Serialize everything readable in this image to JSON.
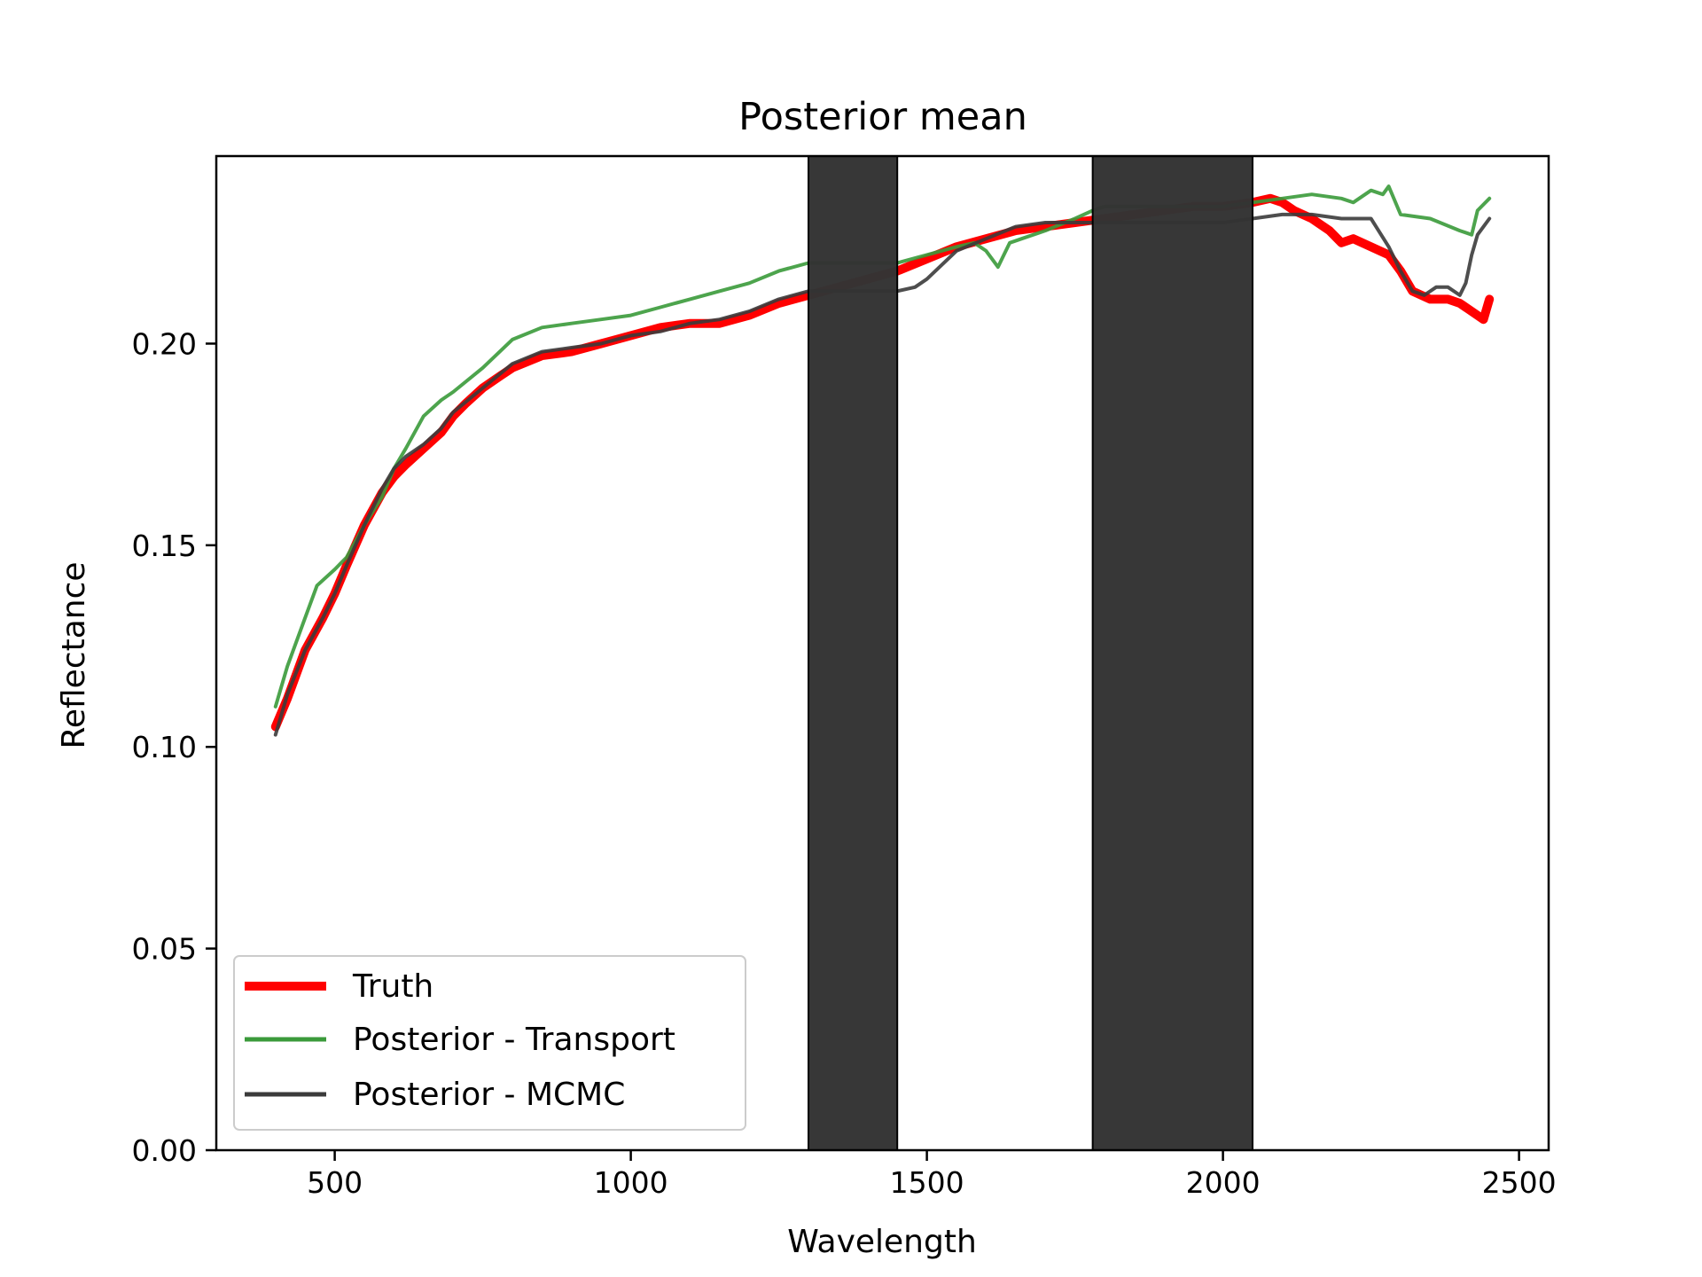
{
  "chart_data": {
    "type": "line",
    "title": "Posterior mean",
    "xlabel": "Wavelength",
    "ylabel": "Reflectance",
    "xlim": [
      300,
      2550
    ],
    "ylim": [
      0,
      0.2465
    ],
    "xticks": [
      500,
      1000,
      1500,
      2000,
      2500
    ],
    "xtick_labels": [
      "500",
      "1000",
      "1500",
      "2000",
      "2500"
    ],
    "yticks": [
      0.0,
      0.05,
      0.1,
      0.15,
      0.2
    ],
    "ytick_labels": [
      "0.00",
      "0.05",
      "0.10",
      "0.15",
      "0.20"
    ],
    "grid": false,
    "legend_position": "lower-left",
    "shaded_regions": [
      {
        "x0": 1300,
        "x1": 1450,
        "color": "#333333"
      },
      {
        "x0": 1780,
        "x1": 2050,
        "color": "#333333"
      }
    ],
    "series": [
      {
        "name": "Truth",
        "color": "#ff0000",
        "x": [
          400,
          420,
          450,
          480,
          500,
          520,
          550,
          580,
          600,
          620,
          650,
          680,
          700,
          720,
          750,
          780,
          800,
          850,
          900,
          950,
          1000,
          1050,
          1100,
          1150,
          1200,
          1250,
          1300,
          1350,
          1400,
          1450,
          1500,
          1550,
          1600,
          1650,
          1700,
          1750,
          1800,
          1850,
          1900,
          1950,
          2000,
          2050,
          2080,
          2100,
          2120,
          2150,
          2180,
          2200,
          2220,
          2250,
          2280,
          2300,
          2320,
          2350,
          2380,
          2400,
          2420,
          2440,
          2450
        ],
        "y": [
          0.105,
          0.112,
          0.124,
          0.132,
          0.138,
          0.145,
          0.155,
          0.163,
          0.167,
          0.17,
          0.174,
          0.178,
          0.182,
          0.185,
          0.189,
          0.192,
          0.194,
          0.197,
          0.198,
          0.2,
          0.202,
          0.204,
          0.205,
          0.205,
          0.207,
          0.21,
          0.212,
          0.214,
          0.216,
          0.218,
          0.221,
          0.224,
          0.226,
          0.228,
          0.229,
          0.23,
          0.231,
          0.232,
          0.233,
          0.234,
          0.234,
          0.235,
          0.236,
          0.235,
          0.233,
          0.231,
          0.228,
          0.225,
          0.226,
          0.224,
          0.222,
          0.218,
          0.213,
          0.211,
          0.211,
          0.21,
          0.208,
          0.206,
          0.211
        ]
      },
      {
        "name": "Posterior - Transport",
        "color": "#3a9a3a",
        "x": [
          400,
          420,
          450,
          470,
          500,
          520,
          550,
          580,
          600,
          620,
          650,
          680,
          700,
          750,
          800,
          850,
          900,
          950,
          1000,
          1050,
          1100,
          1150,
          1200,
          1250,
          1300,
          1350,
          1400,
          1450,
          1500,
          1550,
          1580,
          1600,
          1620,
          1640,
          1660,
          1700,
          1750,
          1780,
          1800,
          1850,
          1900,
          1950,
          2000,
          2050,
          2100,
          2150,
          2200,
          2220,
          2250,
          2270,
          2280,
          2300,
          2350,
          2400,
          2420,
          2430,
          2450
        ],
        "y": [
          0.11,
          0.12,
          0.132,
          0.14,
          0.144,
          0.147,
          0.155,
          0.162,
          0.169,
          0.174,
          0.182,
          0.186,
          0.188,
          0.194,
          0.201,
          0.204,
          0.205,
          0.206,
          0.207,
          0.209,
          0.211,
          0.213,
          0.215,
          0.218,
          0.22,
          0.22,
          0.22,
          0.22,
          0.222,
          0.224,
          0.225,
          0.223,
          0.219,
          0.225,
          0.226,
          0.228,
          0.231,
          0.233,
          0.234,
          0.234,
          0.234,
          0.234,
          0.234,
          0.235,
          0.236,
          0.237,
          0.236,
          0.235,
          0.238,
          0.237,
          0.239,
          0.232,
          0.231,
          0.228,
          0.227,
          0.233,
          0.236
        ]
      },
      {
        "name": "Posterior - MCMC",
        "color": "#3b3b3b",
        "x": [
          400,
          420,
          450,
          480,
          500,
          520,
          550,
          580,
          600,
          620,
          650,
          680,
          700,
          750,
          800,
          850,
          900,
          950,
          1000,
          1050,
          1100,
          1150,
          1200,
          1250,
          1300,
          1350,
          1400,
          1450,
          1480,
          1500,
          1550,
          1600,
          1650,
          1700,
          1750,
          1800,
          1850,
          1900,
          1950,
          2000,
          2050,
          2100,
          2150,
          2200,
          2250,
          2280,
          2300,
          2320,
          2340,
          2360,
          2380,
          2400,
          2410,
          2420,
          2430,
          2450
        ],
        "y": [
          0.103,
          0.113,
          0.124,
          0.132,
          0.138,
          0.145,
          0.155,
          0.164,
          0.169,
          0.172,
          0.175,
          0.179,
          0.183,
          0.189,
          0.195,
          0.198,
          0.199,
          0.2,
          0.202,
          0.203,
          0.205,
          0.206,
          0.208,
          0.211,
          0.213,
          0.213,
          0.213,
          0.213,
          0.214,
          0.216,
          0.223,
          0.226,
          0.229,
          0.23,
          0.23,
          0.23,
          0.23,
          0.23,
          0.23,
          0.23,
          0.231,
          0.232,
          0.232,
          0.231,
          0.231,
          0.224,
          0.218,
          0.213,
          0.212,
          0.214,
          0.214,
          0.212,
          0.215,
          0.222,
          0.227,
          0.231
        ]
      }
    ]
  }
}
